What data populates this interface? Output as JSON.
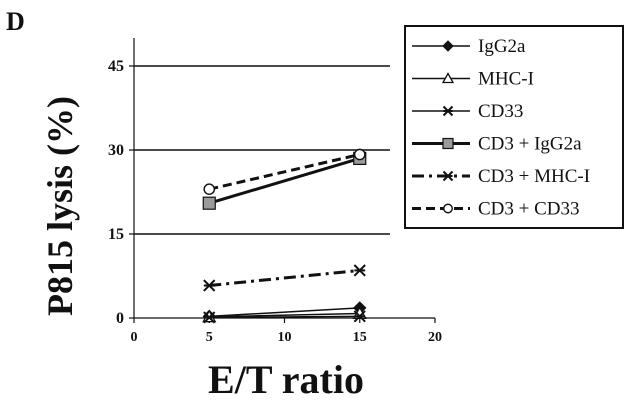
{
  "panel_label": "D",
  "colors": {
    "line": "#111111",
    "background": "#ffffff",
    "open_marker_fill": "#ffffff",
    "gray_marker_fill": "#9a9a9a"
  },
  "chart_data": {
    "type": "line",
    "title": "",
    "xlabel": "E/T ratio",
    "ylabel": "P815 lysis (%)",
    "xlim": [
      0,
      20
    ],
    "ylim": [
      0,
      50
    ],
    "x_ticks": [
      0,
      5,
      10,
      15,
      20
    ],
    "y_ticks": [
      0,
      15,
      30,
      45
    ],
    "grid": "horizontal at y ticks",
    "legend_position": "top-right",
    "series": [
      {
        "name": "IgG2a",
        "x": [
          5,
          15
        ],
        "y": [
          0.3,
          1.8
        ],
        "marker": "diamond-filled",
        "dash": "solid",
        "width": 1.5
      },
      {
        "name": "MHC-I",
        "x": [
          5,
          15
        ],
        "y": [
          0.2,
          0.8
        ],
        "marker": "triangle-open",
        "dash": "solid",
        "width": 1.5
      },
      {
        "name": "CD33",
        "x": [
          5,
          15
        ],
        "y": [
          0.1,
          0.3
        ],
        "marker": "star",
        "dash": "solid",
        "width": 1.5
      },
      {
        "name": "CD3 + IgG2a",
        "x": [
          5,
          15
        ],
        "y": [
          20.5,
          28.5
        ],
        "marker": "square-gray",
        "dash": "solid",
        "width": 3
      },
      {
        "name": "CD3 + MHC-I",
        "x": [
          5,
          15
        ],
        "y": [
          5.8,
          8.5
        ],
        "marker": "star",
        "dash": "dashdot",
        "width": 3
      },
      {
        "name": "CD3 + CD33",
        "x": [
          5,
          15
        ],
        "y": [
          23.0,
          29.2
        ],
        "marker": "circle-open",
        "dash": "dashed",
        "width": 3
      }
    ]
  }
}
